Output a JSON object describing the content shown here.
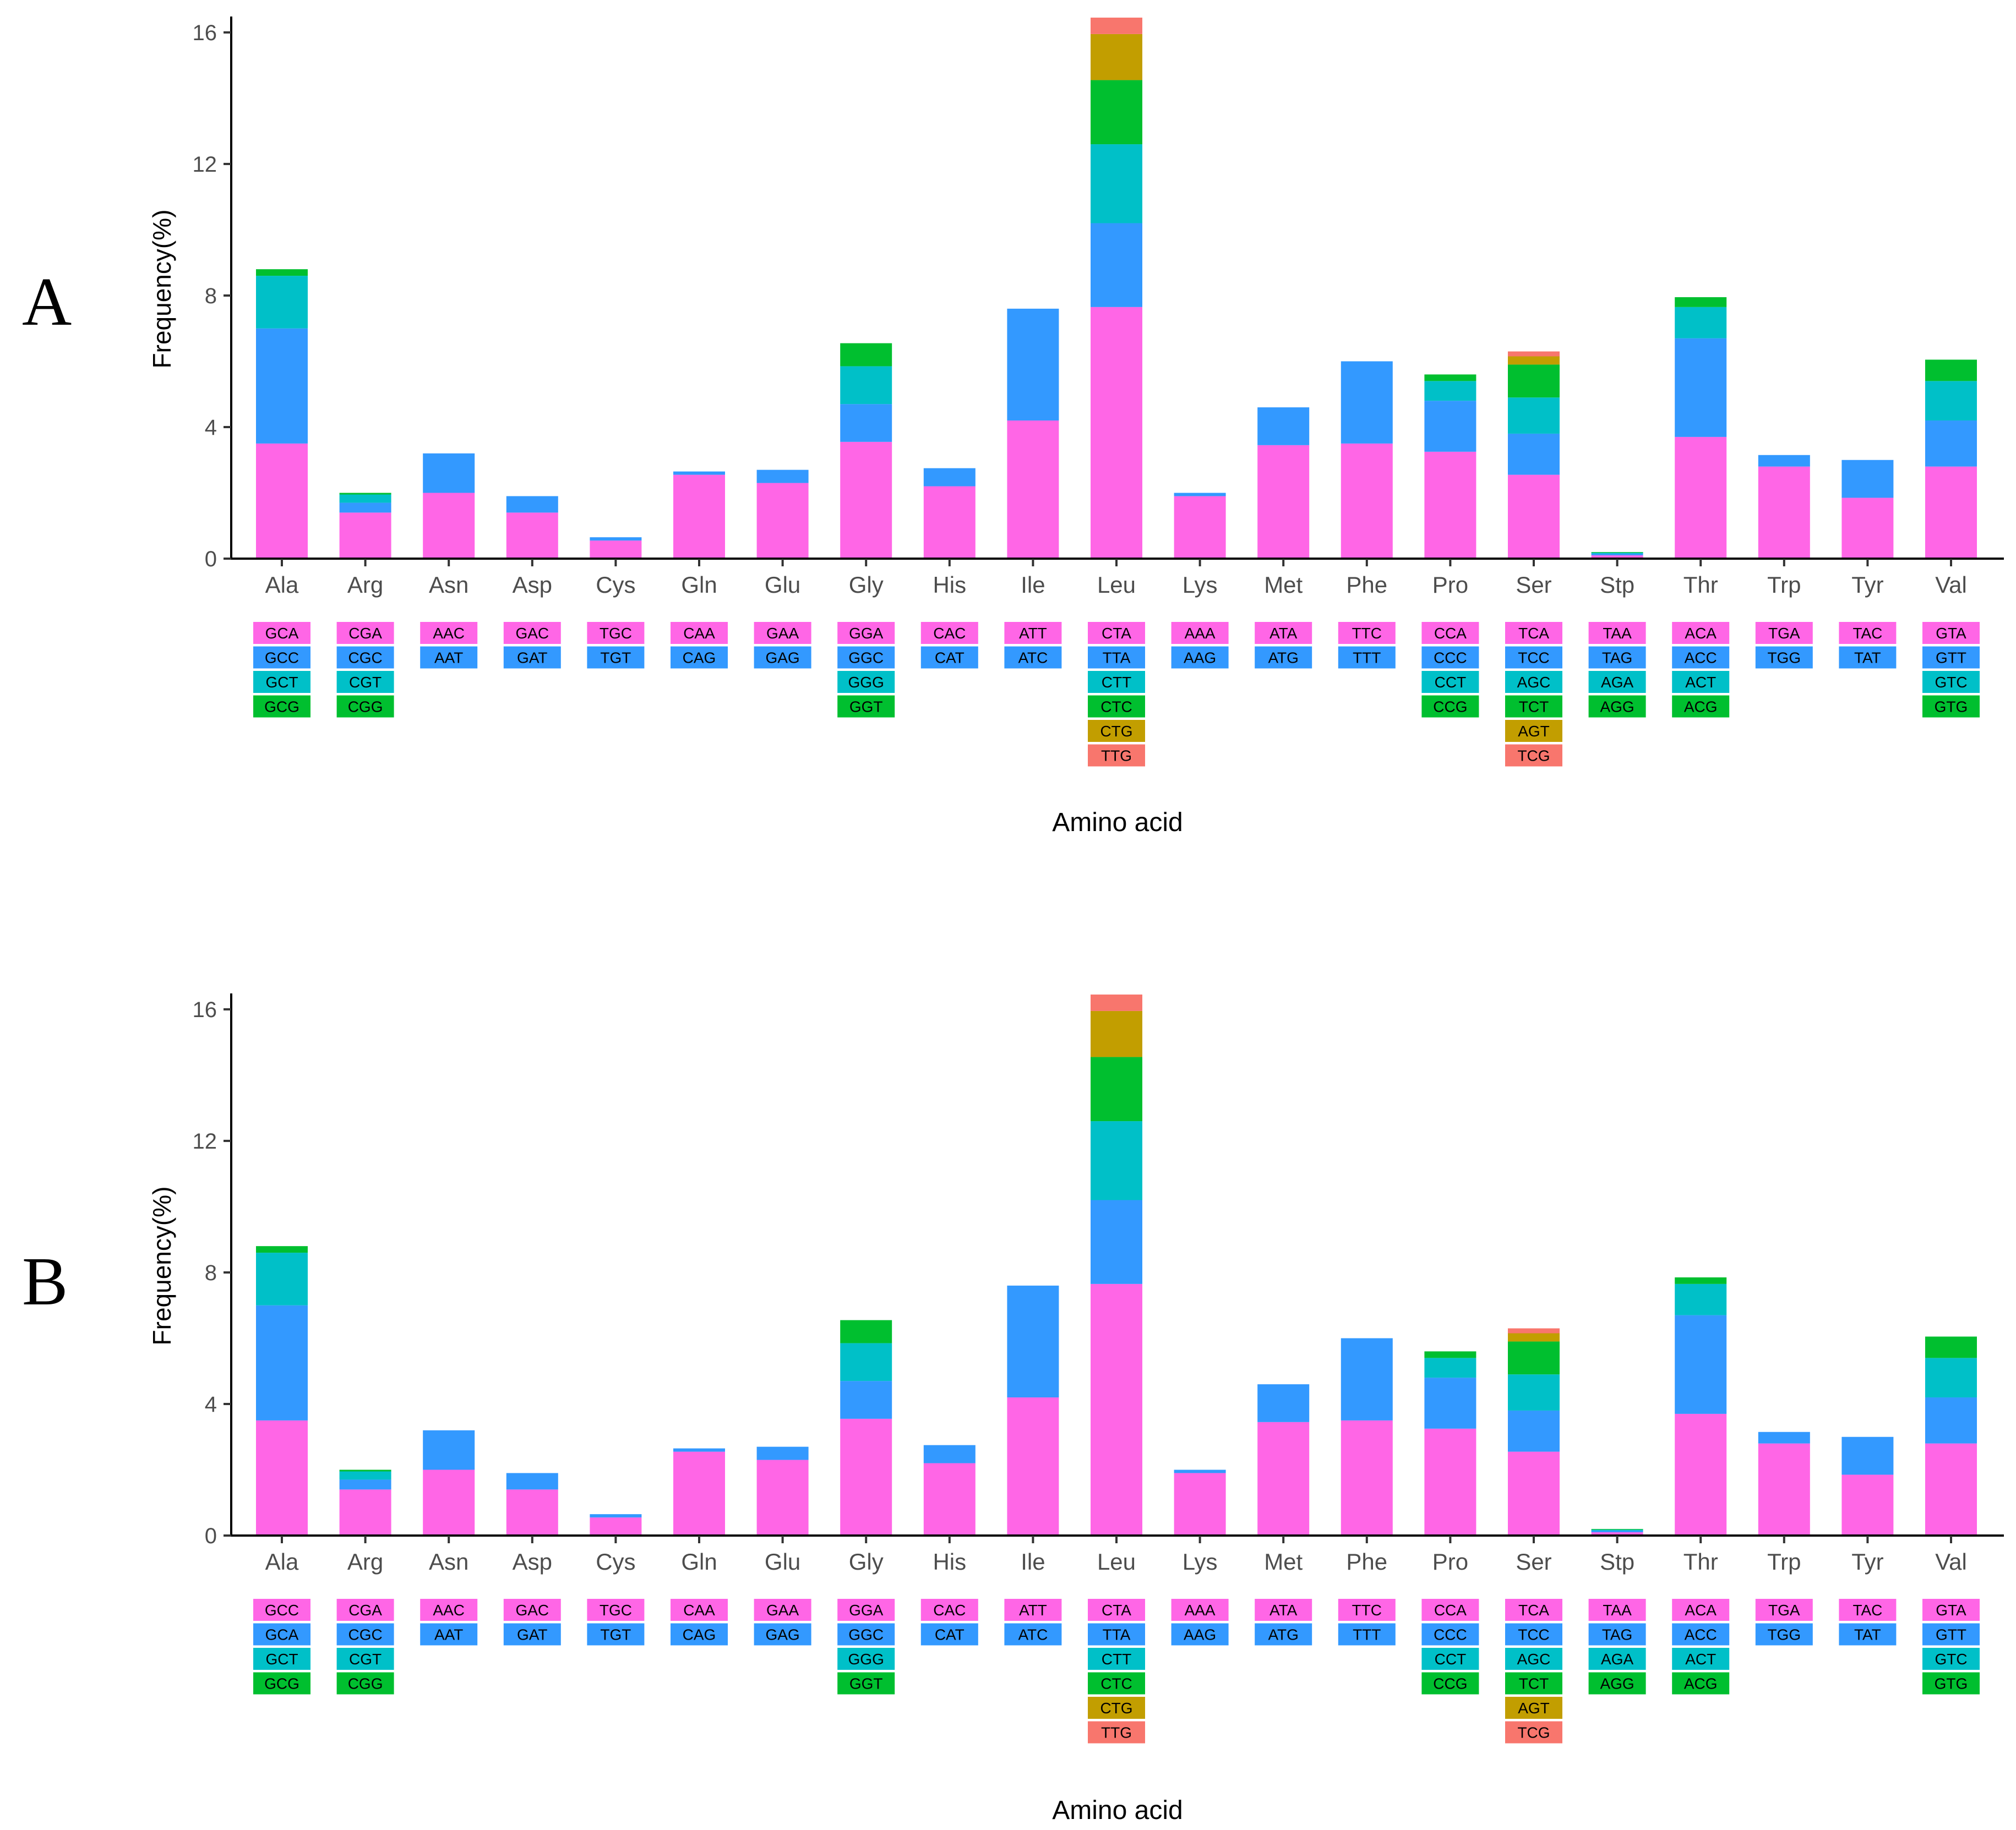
{
  "chart_data": [
    {
      "type": "bar",
      "stacked": true,
      "panel_label": "A",
      "xlabel": "Amino acid",
      "ylabel": "Frequency(%)",
      "ylim": [
        0,
        16.4
      ],
      "yticks": [
        0,
        4,
        8,
        12,
        16
      ],
      "categories": [
        "Ala",
        "Arg",
        "Asn",
        "Asp",
        "Cys",
        "Gln",
        "Glu",
        "Gly",
        "His",
        "Ile",
        "Leu",
        "Lys",
        "Met",
        "Phe",
        "Pro",
        "Ser",
        "Stp",
        "Thr",
        "Trp",
        "Tyr",
        "Val"
      ],
      "stack_values": [
        [
          3.5,
          3.5,
          1.6,
          0.2
        ],
        [
          1.4,
          0.3,
          0.25,
          0.05
        ],
        [
          2.0,
          1.2
        ],
        [
          1.4,
          0.5
        ],
        [
          0.55,
          0.1
        ],
        [
          2.55,
          0.1
        ],
        [
          2.3,
          0.4
        ],
        [
          3.55,
          1.15,
          1.15,
          0.7
        ],
        [
          2.2,
          0.55
        ],
        [
          4.2,
          3.4
        ],
        [
          7.65,
          2.55,
          2.4,
          1.95,
          1.4,
          0.5
        ],
        [
          1.9,
          0.1
        ],
        [
          3.45,
          1.15
        ],
        [
          3.5,
          2.5
        ],
        [
          3.25,
          1.55,
          0.6,
          0.2
        ],
        [
          2.55,
          1.25,
          1.1,
          1.0,
          0.25,
          0.15
        ],
        [
          0.1,
          0.05,
          0.03,
          0.02
        ],
        [
          3.7,
          3.0,
          0.95,
          0.3
        ],
        [
          2.8,
          0.35
        ],
        [
          1.85,
          1.15
        ],
        [
          2.8,
          1.4,
          1.2,
          0.65
        ]
      ],
      "codons": [
        [
          "GCA",
          "GCC",
          "GCT",
          "GCG"
        ],
        [
          "CGA",
          "CGC",
          "CGT",
          "CGG"
        ],
        [
          "AAC",
          "AAT"
        ],
        [
          "GAC",
          "GAT"
        ],
        [
          "TGC",
          "TGT"
        ],
        [
          "CAA",
          "CAG"
        ],
        [
          "GAA",
          "GAG"
        ],
        [
          "GGA",
          "GGC",
          "GGG",
          "GGT"
        ],
        [
          "CAC",
          "CAT"
        ],
        [
          "ATT",
          "ATC"
        ],
        [
          "CTA",
          "TTA",
          "CTT",
          "CTC",
          "CTG",
          "TTG"
        ],
        [
          "AAA",
          "AAG"
        ],
        [
          "ATA",
          "ATG"
        ],
        [
          "TTC",
          "TTT"
        ],
        [
          "CCA",
          "CCC",
          "CCT",
          "CCG"
        ],
        [
          "TCA",
          "TCC",
          "AGC",
          "TCT",
          "AGT",
          "TCG"
        ],
        [
          "TAA",
          "TAG",
          "AGA",
          "AGG"
        ],
        [
          "ACA",
          "ACC",
          "ACT",
          "ACG"
        ],
        [
          "TGA",
          "TGG"
        ],
        [
          "TAC",
          "TAT"
        ],
        [
          "GTA",
          "GTT",
          "GTC",
          "GTG"
        ]
      ]
    },
    {
      "type": "bar",
      "stacked": true,
      "panel_label": "B",
      "xlabel": "Amino acid",
      "ylabel": "Frequency(%)",
      "ylim": [
        0,
        16.4
      ],
      "yticks": [
        0,
        4,
        8,
        12,
        16
      ],
      "categories": [
        "Ala",
        "Arg",
        "Asn",
        "Asp",
        "Cys",
        "Gln",
        "Glu",
        "Gly",
        "His",
        "Ile",
        "Leu",
        "Lys",
        "Met",
        "Phe",
        "Pro",
        "Ser",
        "Stp",
        "Thr",
        "Trp",
        "Tyr",
        "Val"
      ],
      "stack_values": [
        [
          3.5,
          3.5,
          1.6,
          0.2
        ],
        [
          1.4,
          0.3,
          0.25,
          0.05
        ],
        [
          2.0,
          1.2
        ],
        [
          1.4,
          0.5
        ],
        [
          0.55,
          0.1
        ],
        [
          2.55,
          0.1
        ],
        [
          2.3,
          0.4
        ],
        [
          3.55,
          1.15,
          1.15,
          0.7
        ],
        [
          2.2,
          0.55
        ],
        [
          4.2,
          3.4
        ],
        [
          7.65,
          2.55,
          2.4,
          1.95,
          1.4,
          0.5
        ],
        [
          1.9,
          0.1
        ],
        [
          3.45,
          1.15
        ],
        [
          3.5,
          2.5
        ],
        [
          3.25,
          1.55,
          0.6,
          0.2
        ],
        [
          2.55,
          1.25,
          1.1,
          1.0,
          0.25,
          0.15
        ],
        [
          0.1,
          0.05,
          0.03,
          0.02
        ],
        [
          3.7,
          3.0,
          0.95,
          0.2
        ],
        [
          2.8,
          0.35
        ],
        [
          1.85,
          1.15
        ],
        [
          2.8,
          1.4,
          1.2,
          0.65
        ]
      ],
      "codons": [
        [
          "GCC",
          "GCA",
          "GCT",
          "GCG"
        ],
        [
          "CGA",
          "CGC",
          "CGT",
          "CGG"
        ],
        [
          "AAC",
          "AAT"
        ],
        [
          "GAC",
          "GAT"
        ],
        [
          "TGC",
          "TGT"
        ],
        [
          "CAA",
          "CAG"
        ],
        [
          "GAA",
          "GAG"
        ],
        [
          "GGA",
          "GGC",
          "GGG",
          "GGT"
        ],
        [
          "CAC",
          "CAT"
        ],
        [
          "ATT",
          "ATC"
        ],
        [
          "CTA",
          "TTA",
          "CTT",
          "CTC",
          "CTG",
          "TTG"
        ],
        [
          "AAA",
          "AAG"
        ],
        [
          "ATA",
          "ATG"
        ],
        [
          "TTC",
          "TTT"
        ],
        [
          "CCA",
          "CCC",
          "CCT",
          "CCG"
        ],
        [
          "TCA",
          "TCC",
          "AGC",
          "TCT",
          "AGT",
          "TCG"
        ],
        [
          "TAA",
          "TAG",
          "AGA",
          "AGG"
        ],
        [
          "ACA",
          "ACC",
          "ACT",
          "ACG"
        ],
        [
          "TGA",
          "TGG"
        ],
        [
          "TAC",
          "TAT"
        ],
        [
          "GTA",
          "GTT",
          "GTC",
          "GTG"
        ]
      ]
    }
  ],
  "stack_colors": [
    "#ff66e6",
    "#3399ff",
    "#00c0c8",
    "#00bf2f",
    "#c29e00",
    "#f8766d"
  ]
}
